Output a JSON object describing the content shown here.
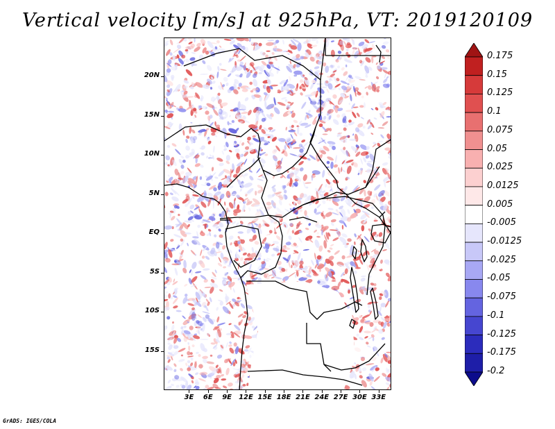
{
  "title": "Vertical velocity [m/s] at 925hPa, VT: 2019120109",
  "footer": "GrADS: IGES/COLA",
  "map": {
    "lon_range": [
      -1,
      35
    ],
    "lat_range": [
      -20,
      25
    ],
    "lat_labels": [
      {
        "lat": 20,
        "text": "20N"
      },
      {
        "lat": 15,
        "text": "15N"
      },
      {
        "lat": 10,
        "text": "10N"
      },
      {
        "lat": 5,
        "text": "5N"
      },
      {
        "lat": 0,
        "text": "EQ"
      },
      {
        "lat": -5,
        "text": "5S"
      },
      {
        "lat": -10,
        "text": "10S"
      },
      {
        "lat": -15,
        "text": "15S"
      }
    ],
    "lon_labels": [
      {
        "lon": 3,
        "text": "3E"
      },
      {
        "lon": 6,
        "text": "6E"
      },
      {
        "lon": 9,
        "text": "9E"
      },
      {
        "lon": 12,
        "text": "12E"
      },
      {
        "lon": 15,
        "text": "15E"
      },
      {
        "lon": 18,
        "text": "18E"
      },
      {
        "lon": 21,
        "text": "21E"
      },
      {
        "lon": 24,
        "text": "24E"
      },
      {
        "lon": 27,
        "text": "27E"
      },
      {
        "lon": 30,
        "text": "30E"
      },
      {
        "lon": 33,
        "text": "33E"
      }
    ]
  },
  "colorbar": {
    "levels": [
      "0.175",
      "0.15",
      "0.125",
      "0.1",
      "0.075",
      "0.05",
      "0.025",
      "0.0125",
      "0.005",
      "-0.005",
      "-0.0125",
      "-0.025",
      "-0.05",
      "-0.075",
      "-0.1",
      "-0.125",
      "-0.175",
      "-0.2"
    ],
    "colors": [
      "#a01414",
      "#c02020",
      "#d63a3a",
      "#e05050",
      "#e87070",
      "#f09090",
      "#f8b0b0",
      "#fcd0d0",
      "#fee8e8",
      "#ffffff",
      "#e6e6fc",
      "#c8c8f8",
      "#a8a8f4",
      "#8888ee",
      "#6464e0",
      "#4646d0",
      "#2c2cbc",
      "#1e1ea8",
      "#0c0c8c"
    ]
  }
}
